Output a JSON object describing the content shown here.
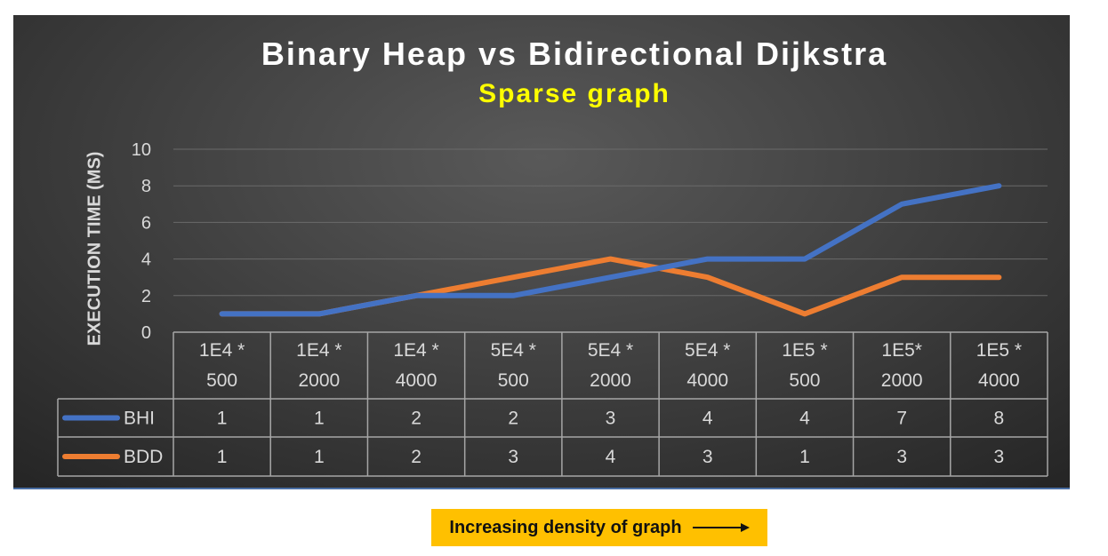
{
  "chart_data": {
    "type": "line",
    "title": "Binary Heap vs Bidirectional Dijkstra",
    "subtitle": "Sparse graph",
    "ylabel": "EXECUTION TIME (MS)",
    "ylim": [
      0,
      10
    ],
    "yticks": [
      "0",
      "2",
      "4",
      "6",
      "8",
      "10"
    ],
    "grid": true,
    "legend_placement": "data-table",
    "categories": [
      [
        "1E4 *",
        "500"
      ],
      [
        "1E4 *",
        "2000"
      ],
      [
        "1E4 *",
        "4000"
      ],
      [
        "5E4 *",
        "500"
      ],
      [
        "5E4 *",
        "2000"
      ],
      [
        "5E4 *",
        "4000"
      ],
      [
        "1E5 *",
        "500"
      ],
      [
        "1E5*",
        "2000"
      ],
      [
        "1E5 *",
        "4000"
      ]
    ],
    "series": [
      {
        "name": "BHI",
        "color": "#4472c4",
        "values": [
          1,
          1,
          2,
          2,
          3,
          4,
          4,
          7,
          8
        ]
      },
      {
        "name": "BDD",
        "color": "#ed7d31",
        "values": [
          1,
          1,
          2,
          3,
          4,
          3,
          1,
          3,
          3
        ]
      }
    ]
  },
  "annotation": {
    "text": "Increasing density of graph",
    "icon": "right-arrow-icon"
  },
  "colors": {
    "background": "#3d3d3d",
    "annotation_bg": "#ffc000"
  }
}
